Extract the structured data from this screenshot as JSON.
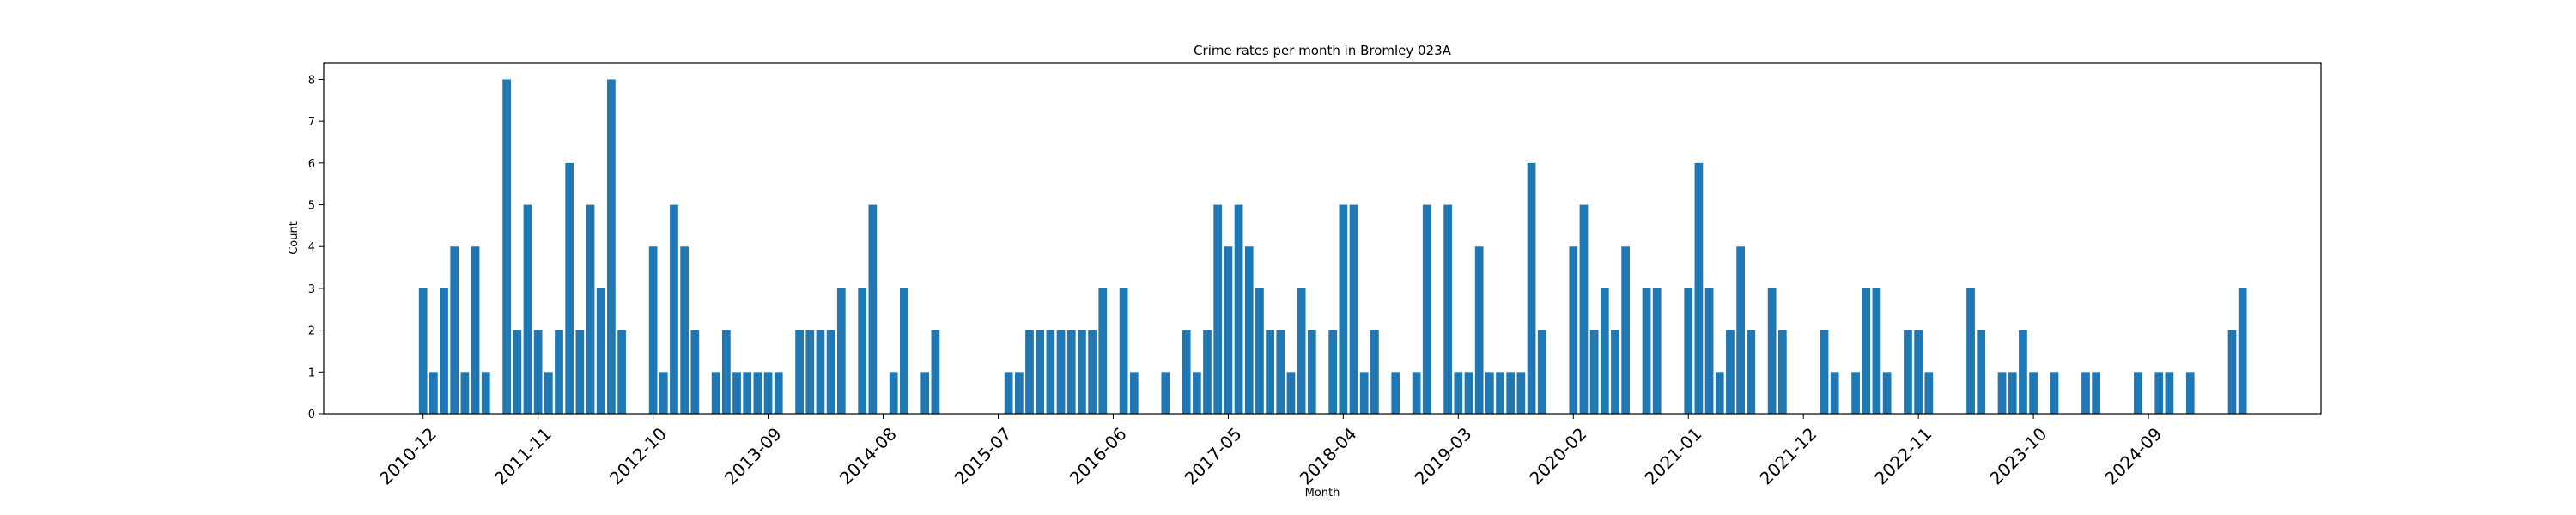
{
  "chart_data": {
    "type": "bar",
    "title": "Crime rates per month in Bromley 023A",
    "xlabel": "Month",
    "ylabel": "Count",
    "ylim": [
      0,
      8.4
    ],
    "yticks": [
      0,
      1,
      2,
      3,
      4,
      5,
      6,
      7,
      8
    ],
    "xlim": [
      -9.5,
      181.5
    ],
    "grid": false,
    "bar_color": "#1f77b4",
    "xtick_labels": [
      {
        "label": "2010-12",
        "index": 0
      },
      {
        "label": "2011-11",
        "index": 11
      },
      {
        "label": "2012-10",
        "index": 22
      },
      {
        "label": "2013-09",
        "index": 33
      },
      {
        "label": "2014-08",
        "index": 44
      },
      {
        "label": "2015-07",
        "index": 55
      },
      {
        "label": "2016-06",
        "index": 66
      },
      {
        "label": "2017-05",
        "index": 77
      },
      {
        "label": "2018-04",
        "index": 88
      },
      {
        "label": "2019-03",
        "index": 99
      },
      {
        "label": "2020-02",
        "index": 110
      },
      {
        "label": "2021-01",
        "index": 121
      },
      {
        "label": "2021-12",
        "index": 132
      },
      {
        "label": "2022-11",
        "index": 143
      },
      {
        "label": "2023-10",
        "index": 154
      },
      {
        "label": "2024-09",
        "index": 165
      }
    ],
    "values": [
      3,
      1,
      3,
      4,
      1,
      4,
      1,
      0,
      8,
      2,
      5,
      2,
      1,
      2,
      6,
      2,
      5,
      3,
      8,
      2,
      0,
      0,
      4,
      1,
      5,
      4,
      2,
      0,
      1,
      2,
      1,
      1,
      1,
      1,
      1,
      0,
      2,
      2,
      2,
      2,
      3,
      0,
      3,
      5,
      0,
      1,
      3,
      0,
      1,
      2,
      0,
      0,
      0,
      0,
      0,
      0,
      1,
      1,
      2,
      2,
      2,
      2,
      2,
      2,
      2,
      3,
      0,
      3,
      1,
      0,
      0,
      1,
      0,
      2,
      1,
      2,
      5,
      4,
      5,
      4,
      3,
      2,
      2,
      1,
      3,
      2,
      0,
      2,
      5,
      5,
      1,
      2,
      0,
      1,
      0,
      1,
      5,
      0,
      5,
      1,
      1,
      4,
      1,
      1,
      1,
      1,
      6,
      2,
      0,
      0,
      4,
      5,
      2,
      3,
      2,
      4,
      0,
      3,
      3,
      0,
      0,
      3,
      6,
      3,
      1,
      2,
      4,
      2,
      0,
      3,
      2,
      0,
      0,
      0,
      2,
      1,
      0,
      1,
      3,
      3,
      1,
      0,
      2,
      2,
      1,
      0,
      0,
      0,
      3,
      2,
      0,
      1,
      1,
      2,
      1,
      0,
      1,
      0,
      0,
      1,
      1,
      0,
      0,
      0,
      1,
      0,
      1,
      1,
      0,
      1,
      0,
      0,
      0,
      2,
      3
    ]
  }
}
